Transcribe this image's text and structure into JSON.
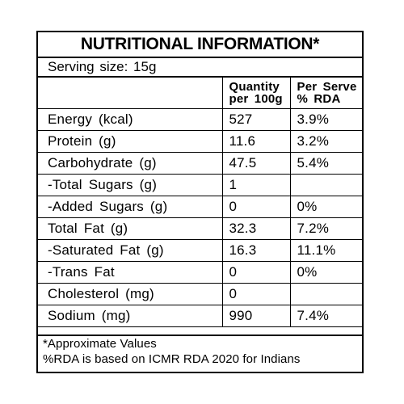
{
  "panel": {
    "title": "NUTRITIONAL INFORMATION*",
    "serving": "Serving  size:  15g"
  },
  "table": {
    "headers": {
      "nutrient": "",
      "quantity_line1": "Quantity",
      "quantity_line2": "per 100g",
      "rda_line1": "Per Serve",
      "rda_line2": "% RDA"
    },
    "rows": [
      {
        "nutrient": "Energy  (kcal)",
        "quantity": "527",
        "rda": "3.9%"
      },
      {
        "nutrient": "Protein  (g)",
        "quantity": "11.6",
        "rda": "3.2%"
      },
      {
        "nutrient": "Carbohydrate  (g)",
        "quantity": "47.5",
        "rda": "5.4%"
      },
      {
        "nutrient": "-Total  Sugars  (g)",
        "quantity": "1",
        "rda": ""
      },
      {
        "nutrient": "-Added  Sugars  (g)",
        "quantity": "0",
        "rda": "0%"
      },
      {
        "nutrient": "Total  Fat  (g)",
        "quantity": "32.3",
        "rda": "7.2%"
      },
      {
        "nutrient": "-Saturated  Fat  (g)",
        "quantity": "16.3",
        "rda": "11.1%"
      },
      {
        "nutrient": "-Trans  Fat",
        "quantity": "0",
        "rda": "0%"
      },
      {
        "nutrient": "Cholesterol  (mg)",
        "quantity": "0",
        "rda": ""
      },
      {
        "nutrient": "Sodium  (mg)",
        "quantity": "990",
        "rda": "7.4%"
      }
    ]
  },
  "footnotes": {
    "line1": "*Approximate Values",
    "line2": "%RDA is based on ICMR RDA 2020 for Indians"
  }
}
